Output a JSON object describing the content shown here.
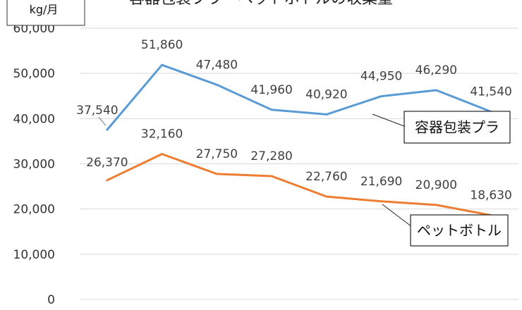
{
  "chart_data": {
    "type": "line",
    "title": "容器包装プラ・ペットボトルの収集量",
    "ylabel": "kg/月",
    "ylim": [
      0,
      60000
    ],
    "yticks": [
      0,
      10000,
      20000,
      30000,
      40000,
      50000,
      60000
    ],
    "ytick_labels": [
      "0",
      "10,000",
      "20,000",
      "30,000",
      "40,000",
      "50,000",
      "60,000"
    ],
    "grid": true,
    "series": [
      {
        "name": "容器包装プラ",
        "color": "#5b9bd5",
        "values": [
          37540,
          51860,
          47480,
          41960,
          40920,
          44950,
          46290,
          41540
        ],
        "labels": [
          "37,540",
          "51,860",
          "47,480",
          "41,960",
          "40,920",
          "44,950",
          "46,290",
          "41,540"
        ]
      },
      {
        "name": "ペットボトル",
        "color": "#ed7d31",
        "values": [
          26370,
          32160,
          27750,
          27280,
          22760,
          21690,
          20900,
          18630
        ],
        "labels": [
          "26,370",
          "32,160",
          "27,750",
          "27,280",
          "22,760",
          "21,690",
          "20,900",
          "18,630"
        ]
      }
    ]
  }
}
